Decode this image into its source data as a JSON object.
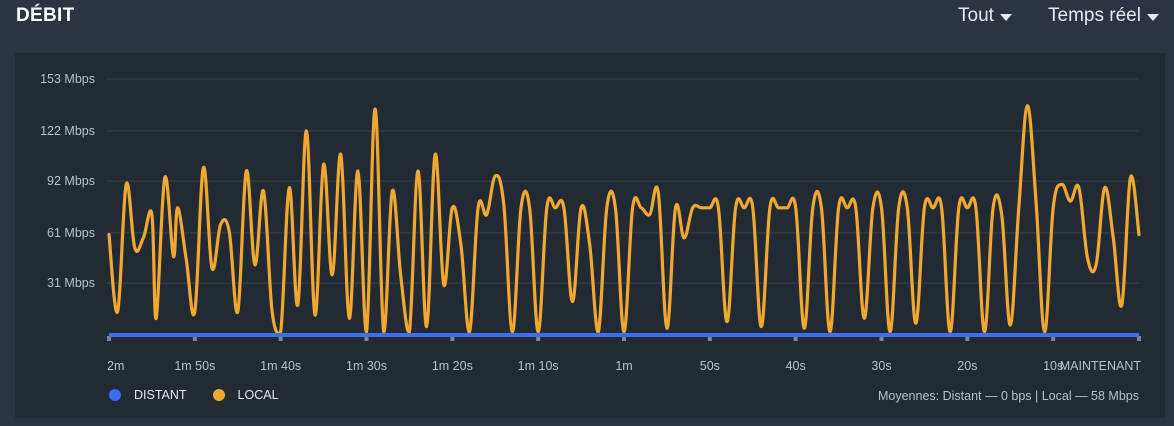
{
  "header": {
    "title": "DÉBIT",
    "range_label": "Tout",
    "mode_label": "Temps réel"
  },
  "legend": {
    "distant_label": "DISTANT",
    "local_label": "LOCAL"
  },
  "averages": {
    "text": "Moyennes: Distant — 0 bps | Local — 58 Mbps"
  },
  "colors": {
    "distant": "#3b6df2",
    "local": "#f0a830",
    "grid": "#3a444f",
    "baseline": "#3b6df2"
  },
  "chart_data": {
    "type": "line",
    "title": "DÉBIT",
    "xlabel": "",
    "ylabel": "",
    "ylim": [
      0,
      153
    ],
    "y_ticks": [
      {
        "value": 31,
        "label": "31 Mbps"
      },
      {
        "value": 61,
        "label": "61 Mbps"
      },
      {
        "value": 92,
        "label": "92 Mbps"
      },
      {
        "value": 122,
        "label": "122 Mbps"
      },
      {
        "value": 153,
        "label": "153 Mbps"
      }
    ],
    "x_ticks": [
      {
        "value": 120,
        "label": "2m"
      },
      {
        "value": 110,
        "label": "1m 50s"
      },
      {
        "value": 100,
        "label": "1m 40s"
      },
      {
        "value": 90,
        "label": "1m 30s"
      },
      {
        "value": 80,
        "label": "1m 20s"
      },
      {
        "value": 70,
        "label": "1m 10s"
      },
      {
        "value": 60,
        "label": "1m"
      },
      {
        "value": 50,
        "label": "50s"
      },
      {
        "value": 40,
        "label": "40s"
      },
      {
        "value": 30,
        "label": "30s"
      },
      {
        "value": 20,
        "label": "20s"
      },
      {
        "value": 10,
        "label": "10s"
      },
      {
        "value": 0,
        "label": "MAINTENANT"
      }
    ],
    "x_unit": "seconds ago",
    "grid": true,
    "legend_position": "bottom-left",
    "series": [
      {
        "name": "DISTANT",
        "x": [
          120,
          0
        ],
        "values": [
          0,
          0
        ]
      },
      {
        "name": "LOCAL",
        "x": [
          120.0,
          119.0,
          118.0,
          117.0,
          116.0,
          115.0,
          114.5,
          113.5,
          112.5,
          112.0,
          111.0,
          110.0,
          109.0,
          108.0,
          107.0,
          106.0,
          105.0,
          104.0,
          103.0,
          102.0,
          101.0,
          100.0,
          99.0,
          98.0,
          97.0,
          96.0,
          95.0,
          94.0,
          93.0,
          92.0,
          91.0,
          90.0,
          89.0,
          88.0,
          87.0,
          86.0,
          85.0,
          84.0,
          83.0,
          82.0,
          81.0,
          80.0,
          79.0,
          78.0,
          77.0,
          76.0,
          75.0,
          74.0,
          73.0,
          72.0,
          71.0,
          70.0,
          69.0,
          68.0,
          67.0,
          66.0,
          65.0,
          64.0,
          63.0,
          62.0,
          61.0,
          60.0,
          59.0,
          58.0,
          57.0,
          56.0,
          55.0,
          54.0,
          53.0,
          52.0,
          51.0,
          50.0,
          49.0,
          48.0,
          47.0,
          46.0,
          45.0,
          44.0,
          43.0,
          42.0,
          41.0,
          40.0,
          39.0,
          38.0,
          37.0,
          36.0,
          35.0,
          34.0,
          33.0,
          32.0,
          31.0,
          30.0,
          29.0,
          28.0,
          27.0,
          26.0,
          25.0,
          24.0,
          23.0,
          22.0,
          21.0,
          20.0,
          19.0,
          18.0,
          17.0,
          16.0,
          15.0,
          14.0,
          13.0,
          12.0,
          11.0,
          10.0,
          9.0,
          8.0,
          7.0,
          6.0,
          5.0,
          4.0,
          3.0,
          2.0,
          1.0,
          0.0
        ],
        "values": [
          60,
          14,
          90,
          52,
          58,
          72,
          10,
          94,
          47,
          76,
          45,
          14,
          100,
          40,
          66,
          62,
          14,
          98,
          42,
          86,
          14,
          2,
          88,
          18,
          122,
          12,
          102,
          36,
          108,
          10,
          98,
          2,
          135,
          2,
          86,
          35,
          2,
          98,
          5,
          108,
          30,
          76,
          54,
          2,
          76,
          72,
          95,
          78,
          2,
          76,
          76,
          2,
          76,
          76,
          76,
          20,
          76,
          54,
          2,
          76,
          76,
          2,
          76,
          76,
          72,
          85,
          4,
          76,
          58,
          76,
          76,
          76,
          76,
          8,
          76,
          76,
          76,
          5,
          76,
          76,
          76,
          76,
          4,
          76,
          76,
          2,
          76,
          76,
          76,
          10,
          76,
          76,
          2,
          76,
          76,
          7,
          76,
          76,
          76,
          2,
          76,
          76,
          76,
          2,
          76,
          72,
          6,
          76,
          137,
          80,
          2,
          76,
          90,
          80,
          88,
          46,
          42,
          88,
          58,
          18,
          94,
          60
        ]
      }
    ]
  }
}
